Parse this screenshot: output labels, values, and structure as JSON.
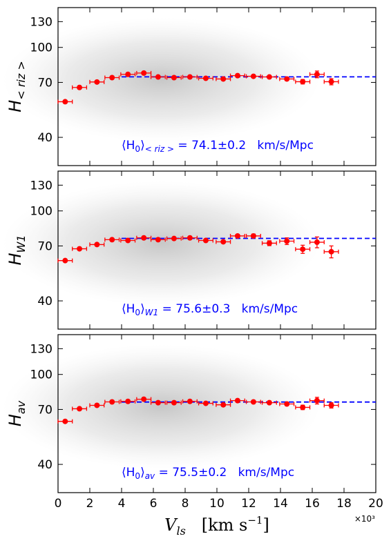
{
  "chart_data": [
    {
      "type": "scatter",
      "color": "#ff0000",
      "ylabel": {
        "main": "H",
        "sub": "< riz >"
      },
      "x": [
        0.45,
        1.35,
        2.45,
        3.4,
        4.4,
        5.4,
        6.3,
        7.3,
        8.3,
        9.3,
        10.4,
        11.3,
        12.3,
        13.3,
        14.4,
        15.4,
        16.3,
        17.2
      ],
      "values": [
        57.5,
        66.5,
        70.3,
        73.5,
        76,
        77,
        74,
        73.5,
        74,
        73,
        72.5,
        75,
        74.5,
        74,
        72.5,
        70.5,
        76,
        70.5
      ],
      "xerr": [
        0.45,
        0.45,
        0.45,
        0.45,
        0.45,
        0.45,
        0.45,
        0.45,
        0.45,
        0.45,
        0.45,
        0.45,
        0.45,
        0.45,
        0.45,
        0.45,
        0.45,
        0.45
      ],
      "yerr": [
        0.7,
        0.7,
        0.6,
        0.6,
        0.6,
        0.6,
        0.6,
        0.6,
        0.6,
        0.7,
        0.8,
        0.8,
        0.9,
        1.0,
        1.2,
        1.6,
        2.6,
        2.2
      ],
      "hline": {
        "value": 74.1,
        "color": "#0000ff",
        "from": 4
      },
      "annotation": {
        "open": "⟨H",
        "sub0": "0",
        "close": "⟩",
        "sub": "< riz >",
        "text": " = 74.1±0.2   km/s/Mpc",
        "color": "#0000ff"
      },
      "xlim": [
        0,
        20
      ],
      "xticks": [
        0,
        2,
        4,
        6,
        8,
        10,
        12,
        14,
        16,
        18,
        20
      ],
      "ylim": [
        30,
        150
      ],
      "yticks": [
        40,
        70,
        100,
        130
      ],
      "yscale": "log"
    },
    {
      "type": "scatter",
      "color": "#ff0000",
      "ylabel": {
        "main": "H",
        "sub": "W1"
      },
      "x": [
        0.45,
        1.35,
        2.45,
        3.4,
        4.4,
        5.4,
        6.3,
        7.3,
        8.3,
        9.3,
        10.4,
        11.3,
        12.3,
        13.3,
        14.4,
        15.4,
        16.3,
        17.2
      ],
      "values": [
        60.3,
        68,
        71,
        74.6,
        74,
        76,
        74.6,
        75.5,
        76,
        74,
        73,
        77.5,
        77.5,
        72,
        73.5,
        67.7,
        72.7,
        66
      ],
      "xerr": [
        0.45,
        0.45,
        0.45,
        0.45,
        0.45,
        0.45,
        0.45,
        0.45,
        0.45,
        0.45,
        0.45,
        0.45,
        0.45,
        0.45,
        0.45,
        0.45,
        0.45,
        0.45
      ],
      "yerr": [
        0.7,
        0.7,
        0.7,
        0.7,
        0.7,
        0.7,
        0.7,
        0.7,
        0.7,
        0.8,
        0.9,
        1.2,
        1.5,
        1.8,
        2.5,
        2.8,
        4.0,
        4.0
      ],
      "hline": {
        "value": 75.6,
        "color": "#0000ff",
        "from": 4
      },
      "annotation": {
        "open": "⟨H",
        "sub0": "0",
        "close": "⟩",
        "sub": "W1",
        "text": " = 75.6±0.3   km/s/Mpc",
        "color": "#0000ff"
      },
      "xlim": [
        0,
        20
      ],
      "xticks": [
        0,
        2,
        4,
        6,
        8,
        10,
        12,
        14,
        16,
        18,
        20
      ],
      "ylim": [
        30,
        150
      ],
      "yticks": [
        40,
        70,
        100,
        130
      ],
      "yscale": "log"
    },
    {
      "type": "scatter",
      "color": "#ff0000",
      "ylabel": {
        "main": "H",
        "sub": "av"
      },
      "x": [
        0.45,
        1.35,
        2.45,
        3.4,
        4.4,
        5.4,
        6.3,
        7.3,
        8.3,
        9.3,
        10.4,
        11.3,
        12.3,
        13.3,
        14.4,
        15.4,
        16.3,
        17.2
      ],
      "values": [
        62,
        70.5,
        73,
        75.6,
        76,
        77.7,
        75,
        75,
        76,
        74.5,
        73.4,
        76.6,
        75.6,
        75,
        74,
        71.5,
        76.6,
        73
      ],
      "xerr": [
        0.45,
        0.45,
        0.45,
        0.45,
        0.45,
        0.45,
        0.45,
        0.45,
        0.45,
        0.45,
        0.45,
        0.45,
        0.45,
        0.45,
        0.45,
        0.45,
        0.45,
        0.45
      ],
      "yerr": [
        0.6,
        0.6,
        0.6,
        0.6,
        0.6,
        0.6,
        0.6,
        0.6,
        0.6,
        0.7,
        0.8,
        0.8,
        0.9,
        1.0,
        1.2,
        1.6,
        2.6,
        2.0
      ],
      "hline": {
        "value": 75.5,
        "color": "#0000ff",
        "from": 4
      },
      "annotation": {
        "open": "⟨H",
        "sub0": "0",
        "close": "⟩",
        "sub": "av",
        "text": " = 75.5±0.2   km/s/Mpc",
        "color": "#0000ff"
      },
      "xlabel": {
        "main": "V",
        "sub": "ls",
        "unit": "   [km s",
        "sup": "−1",
        "end": "]"
      },
      "xmultiplier": "×10³",
      "xlim": [
        0,
        20
      ],
      "xticks": [
        0,
        2,
        4,
        6,
        8,
        10,
        12,
        14,
        16,
        18,
        20
      ],
      "ylim": [
        30,
        150
      ],
      "yticks": [
        40,
        70,
        100,
        130
      ],
      "yscale": "log"
    }
  ]
}
